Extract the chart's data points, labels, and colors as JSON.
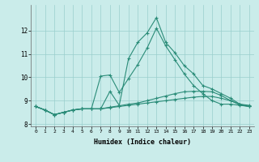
{
  "x": [
    0,
    1,
    2,
    3,
    4,
    5,
    6,
    7,
    8,
    9,
    10,
    11,
    12,
    13,
    14,
    15,
    16,
    17,
    18,
    19,
    20,
    21,
    22,
    23
  ],
  "line1": [
    8.75,
    8.6,
    8.4,
    8.5,
    8.6,
    8.65,
    8.65,
    8.65,
    9.4,
    8.8,
    10.8,
    11.5,
    11.9,
    12.55,
    11.5,
    11.05,
    10.5,
    10.15,
    9.65,
    9.5,
    9.3,
    9.1,
    8.85,
    8.8
  ],
  "line2": [
    8.75,
    8.6,
    8.4,
    8.5,
    8.6,
    8.65,
    8.65,
    10.05,
    10.1,
    9.35,
    9.95,
    10.55,
    11.25,
    12.1,
    11.35,
    10.75,
    10.15,
    9.65,
    9.3,
    9.0,
    8.85,
    8.85,
    8.8,
    8.75
  ],
  "line3": [
    8.75,
    8.6,
    8.4,
    8.5,
    8.6,
    8.65,
    8.65,
    8.65,
    8.72,
    8.78,
    8.85,
    8.9,
    9.0,
    9.1,
    9.2,
    9.3,
    9.38,
    9.4,
    9.4,
    9.38,
    9.22,
    9.0,
    8.85,
    8.75
  ],
  "line4": [
    8.75,
    8.6,
    8.4,
    8.5,
    8.6,
    8.65,
    8.65,
    8.65,
    8.7,
    8.75,
    8.8,
    8.85,
    8.9,
    8.95,
    9.0,
    9.05,
    9.1,
    9.15,
    9.18,
    9.18,
    9.1,
    9.0,
    8.82,
    8.75
  ],
  "line_color": "#2a8c78",
  "bg_color": "#caecea",
  "grid_color": "#9acfcc",
  "xlabel": "Humidex (Indice chaleur)",
  "ylim": [
    7.9,
    13.1
  ],
  "xlim": [
    -0.5,
    23.5
  ],
  "yticks": [
    8,
    9,
    10,
    11,
    12
  ],
  "xticks": [
    0,
    1,
    2,
    3,
    4,
    5,
    6,
    7,
    8,
    9,
    10,
    11,
    12,
    13,
    14,
    15,
    16,
    17,
    18,
    19,
    20,
    21,
    22,
    23
  ]
}
